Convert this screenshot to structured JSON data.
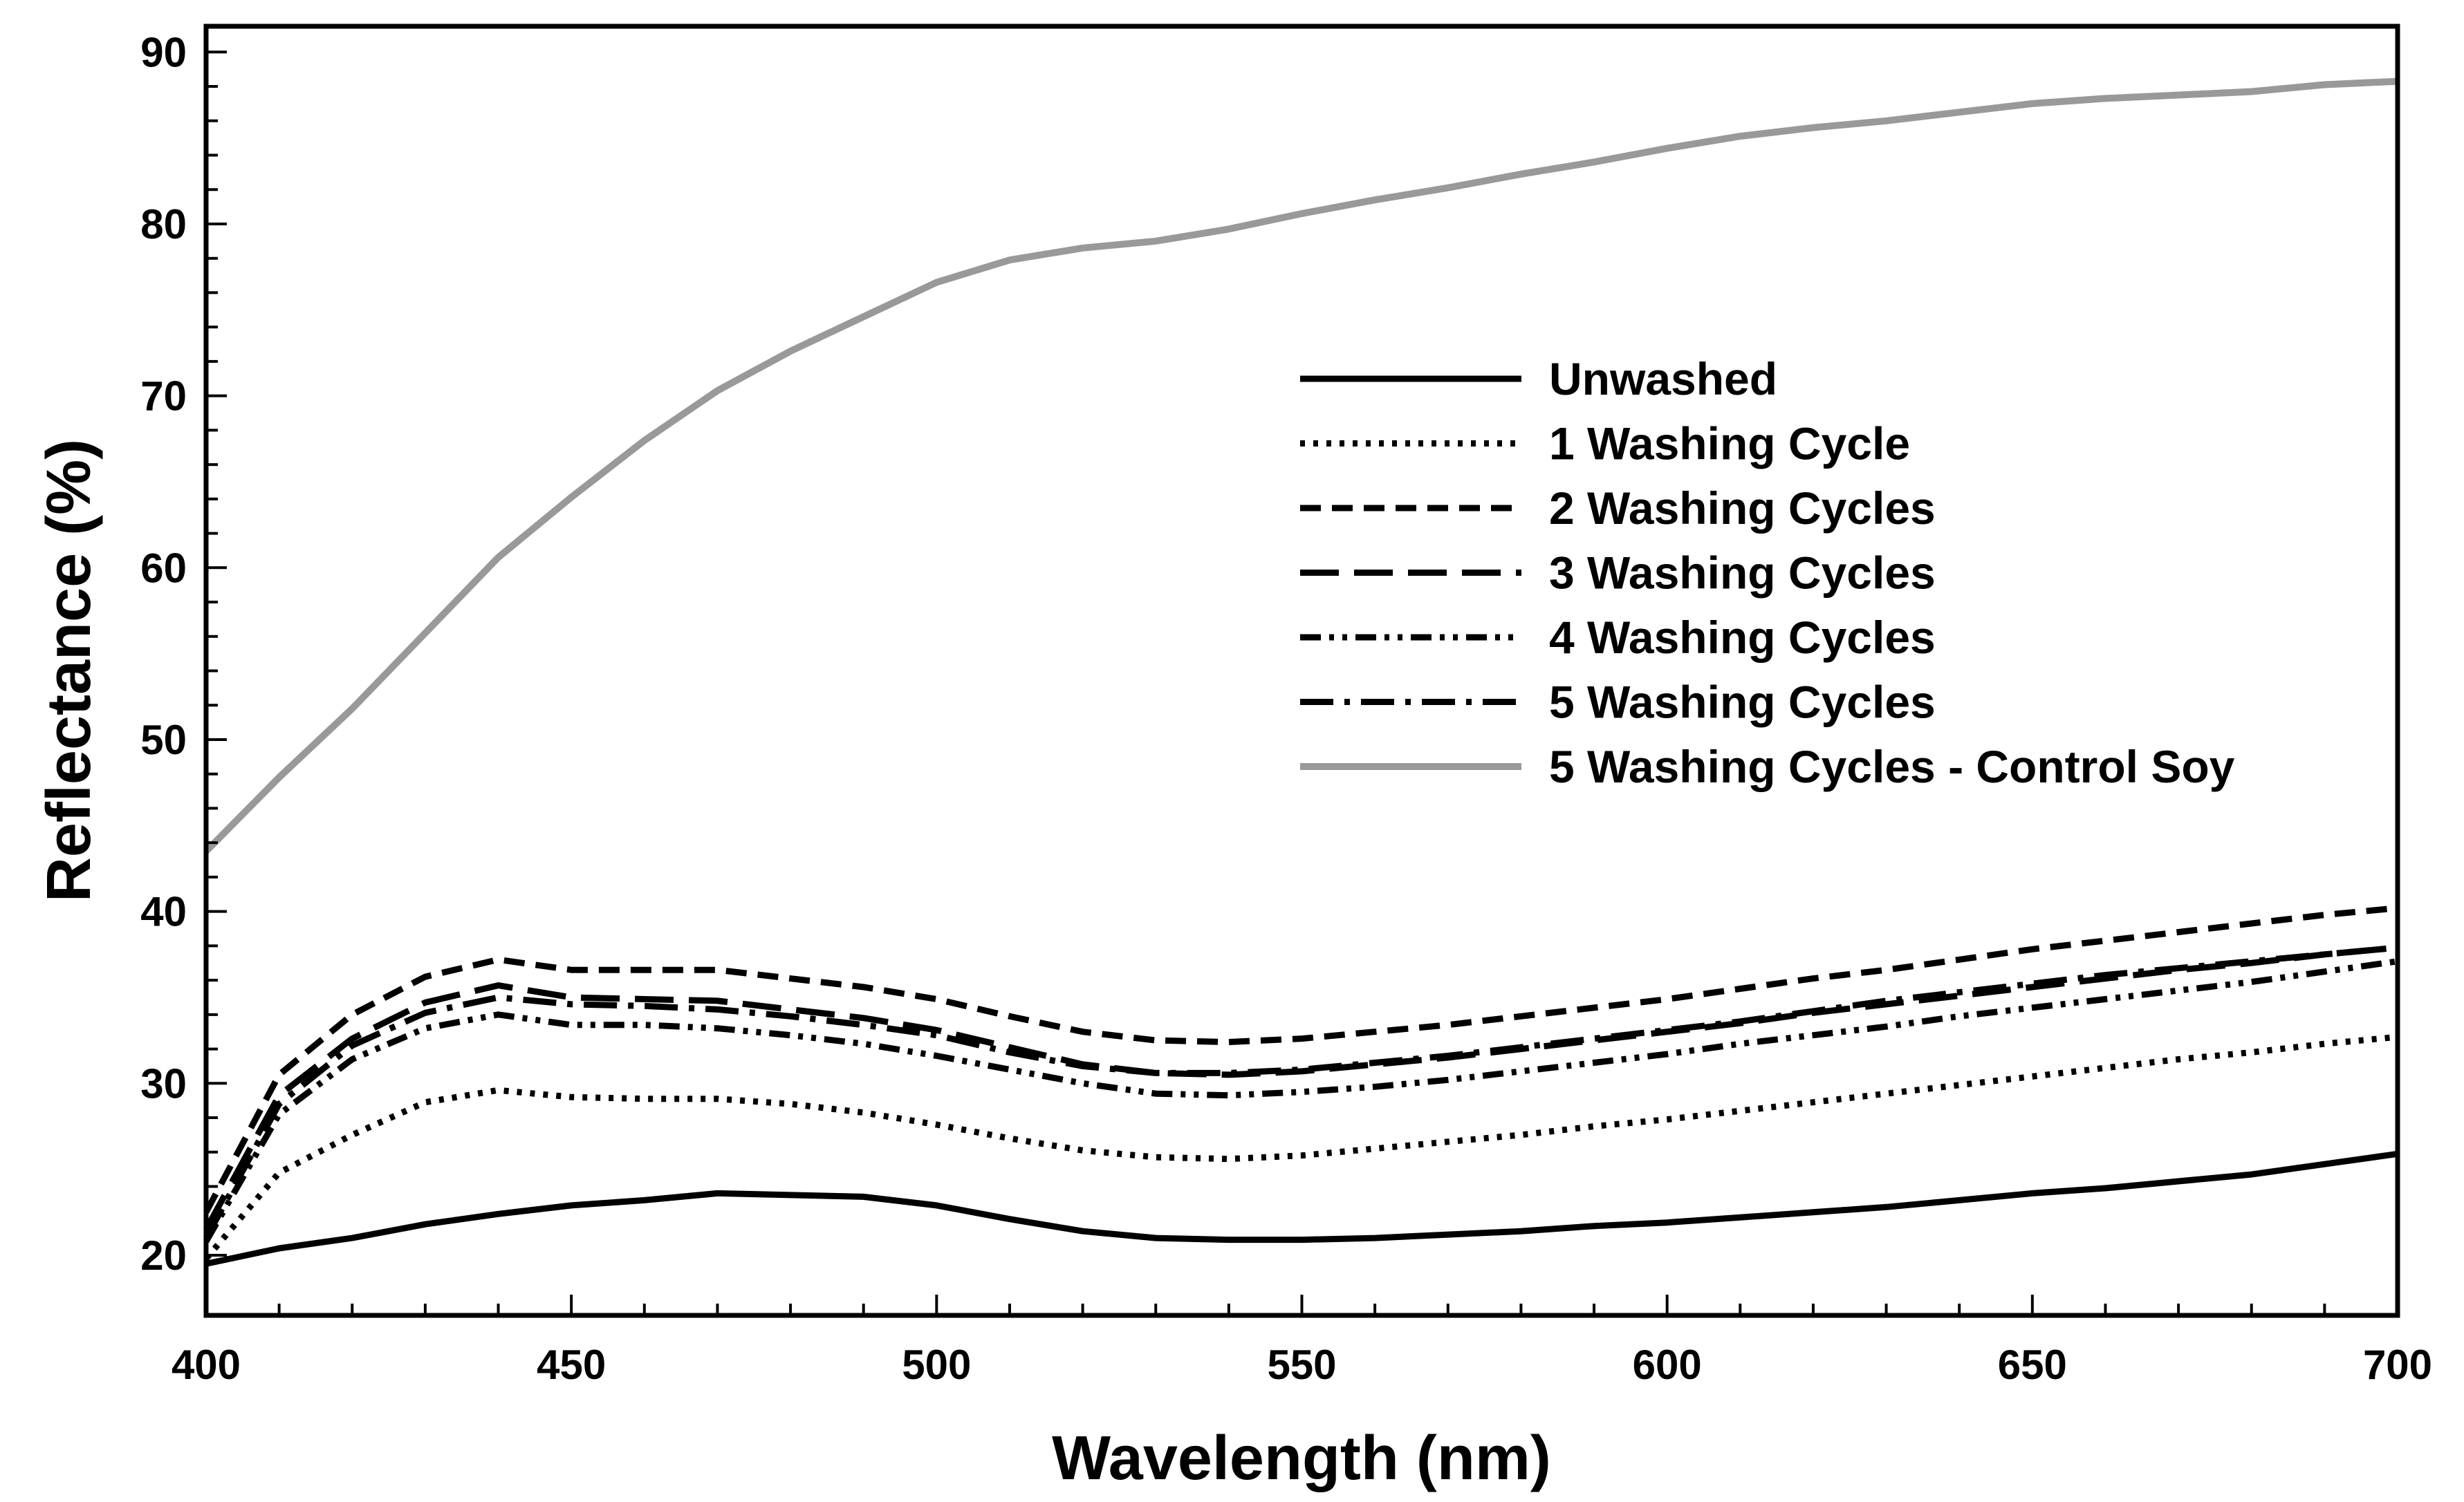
{
  "chart_data": {
    "type": "line",
    "title": "",
    "xlabel": "Wavelength (nm)",
    "ylabel": "Reflectance (%)",
    "xlim": [
      400,
      700
    ],
    "ylim": [
      16.5,
      91.5
    ],
    "xticks": [
      400,
      450,
      500,
      550,
      600,
      650,
      700
    ],
    "yticks": [
      20,
      30,
      40,
      50,
      60,
      70,
      80,
      90
    ],
    "grid": false,
    "legend_position": "center-right",
    "x": [
      400,
      410,
      420,
      430,
      440,
      450,
      460,
      470,
      480,
      490,
      500,
      510,
      520,
      530,
      540,
      550,
      560,
      570,
      580,
      590,
      600,
      610,
      620,
      630,
      640,
      650,
      660,
      670,
      680,
      690,
      700
    ],
    "series": [
      {
        "name": "Unwashed",
        "color": "#000000",
        "dash": "solid",
        "values": [
          19.5,
          20.4,
          21.0,
          21.8,
          22.4,
          22.9,
          23.2,
          23.6,
          23.5,
          23.4,
          22.9,
          22.1,
          21.4,
          21.0,
          20.9,
          20.9,
          21.0,
          21.2,
          21.4,
          21.7,
          21.9,
          22.2,
          22.5,
          22.8,
          23.2,
          23.6,
          23.9,
          24.3,
          24.7,
          25.3,
          25.9
        ]
      },
      {
        "name": "1 Washing Cycle",
        "color": "#000000",
        "dash": "dotted",
        "values": [
          19.8,
          24.8,
          27.0,
          28.9,
          29.6,
          29.2,
          29.1,
          29.1,
          28.8,
          28.3,
          27.6,
          26.8,
          26.1,
          25.7,
          25.6,
          25.8,
          26.2,
          26.6,
          27.0,
          27.5,
          27.9,
          28.4,
          28.9,
          29.4,
          29.9,
          30.4,
          30.9,
          31.4,
          31.8,
          32.3,
          32.7
        ]
      },
      {
        "name": "2 Washing Cycles",
        "color": "#000000",
        "dash": "short-dash",
        "values": [
          22.5,
          30.5,
          34.0,
          36.2,
          37.2,
          36.6,
          36.6,
          36.6,
          36.1,
          35.6,
          34.9,
          33.9,
          33.0,
          32.5,
          32.4,
          32.6,
          33.0,
          33.4,
          33.9,
          34.4,
          34.9,
          35.5,
          36.1,
          36.6,
          37.2,
          37.8,
          38.3,
          38.8,
          39.3,
          39.8,
          40.2
        ]
      },
      {
        "name": "3 Washing Cycles",
        "color": "#000000",
        "dash": "long-dash",
        "values": [
          21.5,
          29.3,
          32.6,
          34.7,
          35.7,
          35.0,
          34.9,
          34.8,
          34.3,
          33.8,
          33.1,
          32.1,
          31.1,
          30.6,
          30.5,
          30.7,
          31.1,
          31.5,
          32.0,
          32.5,
          33.0,
          33.5,
          34.1,
          34.6,
          35.1,
          35.6,
          36.1,
          36.6,
          37.0,
          37.5,
          37.9
        ]
      },
      {
        "name": "4 Washing Cycles",
        "color": "#000000",
        "dash": "dash-dot-dot",
        "values": [
          20.8,
          28.2,
          31.4,
          33.2,
          34.0,
          33.4,
          33.4,
          33.2,
          32.8,
          32.3,
          31.6,
          30.8,
          30.0,
          29.4,
          29.3,
          29.5,
          29.8,
          30.2,
          30.7,
          31.2,
          31.7,
          32.3,
          32.8,
          33.3,
          33.9,
          34.4,
          34.9,
          35.4,
          35.9,
          36.5,
          37.1
        ]
      },
      {
        "name": "5 Washing Cycles",
        "color": "#000000",
        "dash": "dash-dot",
        "values": [
          21.0,
          28.8,
          32.2,
          34.1,
          35.0,
          34.6,
          34.5,
          34.3,
          33.9,
          33.4,
          32.8,
          31.8,
          31.0,
          30.6,
          30.6,
          30.8,
          31.2,
          31.6,
          32.1,
          32.6,
          33.1,
          33.6,
          34.2,
          34.8,
          35.3,
          35.8,
          36.3,
          36.7,
          37.1,
          37.5,
          37.9
        ]
      },
      {
        "name": "5 Washing Cycles - Control Soy",
        "color": "#999999",
        "dash": "solid",
        "values": [
          43.5,
          47.8,
          51.8,
          56.2,
          60.6,
          64.1,
          67.4,
          70.3,
          72.6,
          74.6,
          76.6,
          77.9,
          78.6,
          79.0,
          79.7,
          80.6,
          81.4,
          82.1,
          82.9,
          83.6,
          84.4,
          85.1,
          85.6,
          86.0,
          86.5,
          87.0,
          87.3,
          87.5,
          87.7,
          88.1,
          88.3
        ]
      }
    ]
  }
}
